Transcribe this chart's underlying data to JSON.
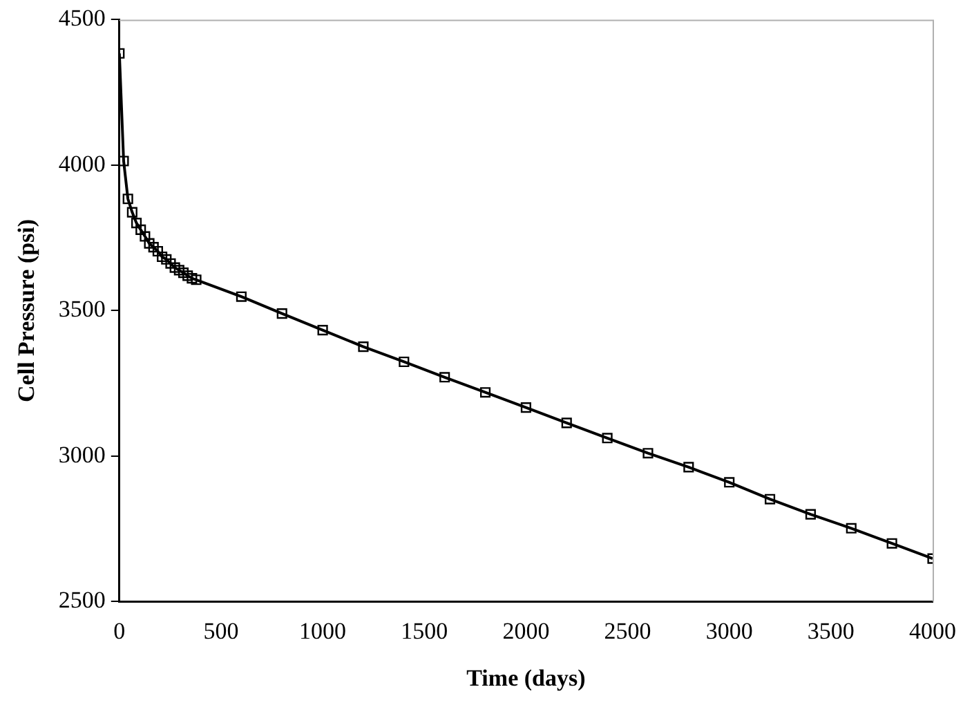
{
  "chart_data": {
    "type": "line",
    "xlabel": "Time (days)",
    "ylabel": "Cell Pressure (psi)",
    "xlim": [
      0,
      4000
    ],
    "xticks": [
      0,
      500,
      1000,
      1500,
      2000,
      2500,
      3000,
      3500,
      4000
    ],
    "ylim": [
      2500,
      4500
    ],
    "yticks": [
      2500,
      3000,
      3500,
      4000,
      4500
    ],
    "series": [
      {
        "color": "#000000",
        "marker": "square",
        "x": [
          0,
          21,
          42,
          63,
          84,
          105,
          126,
          147,
          168,
          189,
          210,
          231,
          252,
          273,
          294,
          315,
          336,
          357,
          378,
          600,
          800,
          1000,
          1200,
          1400,
          1600,
          1800,
          2000,
          2200,
          2400,
          2600,
          2800,
          3000,
          3200,
          3400,
          3600,
          3800,
          4000
        ],
        "values": [
          4384,
          4014,
          3884,
          3838,
          3801,
          3778,
          3755,
          3731,
          3718,
          3704,
          3685,
          3676,
          3662,
          3648,
          3639,
          3630,
          3620,
          3611,
          3606,
          3548,
          3490,
          3433,
          3376,
          3324,
          3271,
          3219,
          3167,
          3114,
          3062,
          3010,
          2962,
          2910,
          2852,
          2800,
          2752,
          2700,
          2648
        ]
      }
    ]
  }
}
